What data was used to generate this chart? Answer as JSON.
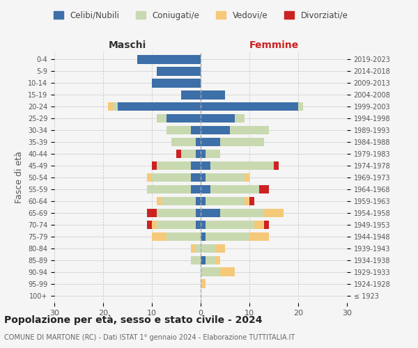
{
  "age_groups": [
    "100+",
    "95-99",
    "90-94",
    "85-89",
    "80-84",
    "75-79",
    "70-74",
    "65-69",
    "60-64",
    "55-59",
    "50-54",
    "45-49",
    "40-44",
    "35-39",
    "30-34",
    "25-29",
    "20-24",
    "15-19",
    "10-14",
    "5-9",
    "0-4"
  ],
  "birth_years": [
    "≤ 1923",
    "1924-1928",
    "1929-1933",
    "1934-1938",
    "1939-1943",
    "1944-1948",
    "1949-1953",
    "1954-1958",
    "1959-1963",
    "1964-1968",
    "1969-1973",
    "1974-1978",
    "1979-1983",
    "1984-1988",
    "1989-1993",
    "1994-1998",
    "1999-2003",
    "2004-2008",
    "2009-2013",
    "2014-2018",
    "2019-2023"
  ],
  "maschi": {
    "celibinubili": [
      0,
      0,
      0,
      0,
      0,
      0,
      1,
      1,
      1,
      2,
      2,
      2,
      1,
      1,
      2,
      7,
      17,
      4,
      10,
      9,
      13
    ],
    "coniugati": [
      0,
      0,
      0,
      2,
      1,
      7,
      8,
      8,
      7,
      9,
      8,
      7,
      3,
      5,
      5,
      2,
      1,
      0,
      0,
      0,
      0
    ],
    "vedovi": [
      0,
      0,
      0,
      0,
      1,
      3,
      1,
      0,
      1,
      0,
      1,
      0,
      0,
      0,
      0,
      0,
      1,
      0,
      0,
      0,
      0
    ],
    "divorziati": [
      0,
      0,
      0,
      0,
      0,
      0,
      1,
      2,
      0,
      0,
      0,
      1,
      1,
      0,
      0,
      0,
      0,
      0,
      0,
      0,
      0
    ]
  },
  "femmine": {
    "celibinubili": [
      0,
      0,
      0,
      1,
      0,
      1,
      1,
      4,
      1,
      2,
      1,
      2,
      1,
      4,
      6,
      7,
      20,
      5,
      0,
      0,
      0
    ],
    "coniugate": [
      0,
      0,
      4,
      2,
      3,
      9,
      10,
      9,
      8,
      10,
      8,
      13,
      3,
      9,
      8,
      2,
      1,
      0,
      0,
      0,
      0
    ],
    "vedove": [
      0,
      1,
      3,
      1,
      2,
      4,
      2,
      4,
      1,
      0,
      1,
      0,
      0,
      0,
      0,
      0,
      0,
      0,
      0,
      0,
      0
    ],
    "divorziate": [
      0,
      0,
      0,
      0,
      0,
      0,
      1,
      0,
      1,
      2,
      0,
      1,
      0,
      0,
      0,
      0,
      0,
      0,
      0,
      0,
      0
    ]
  },
  "colors": {
    "celibinubili": "#3d6fa8",
    "coniugati": "#c8d9b0",
    "vedovi": "#f5c97a",
    "divorziati": "#cc2222"
  },
  "legend_labels": [
    "Celibi/Nubili",
    "Coniugati/e",
    "Vedovi/e",
    "Divorziati/e"
  ],
  "title": "Popolazione per età, sesso e stato civile - 2024",
  "subtitle": "COMUNE DI MARTONE (RC) - Dati ISTAT 1° gennaio 2024 - Elaborazione TUTTITALIA.IT",
  "xlabel_left": "Maschi",
  "xlabel_right": "Femmine",
  "ylabel_left": "Fasce di età",
  "xlim": 30,
  "background_color": "#f5f5f5"
}
